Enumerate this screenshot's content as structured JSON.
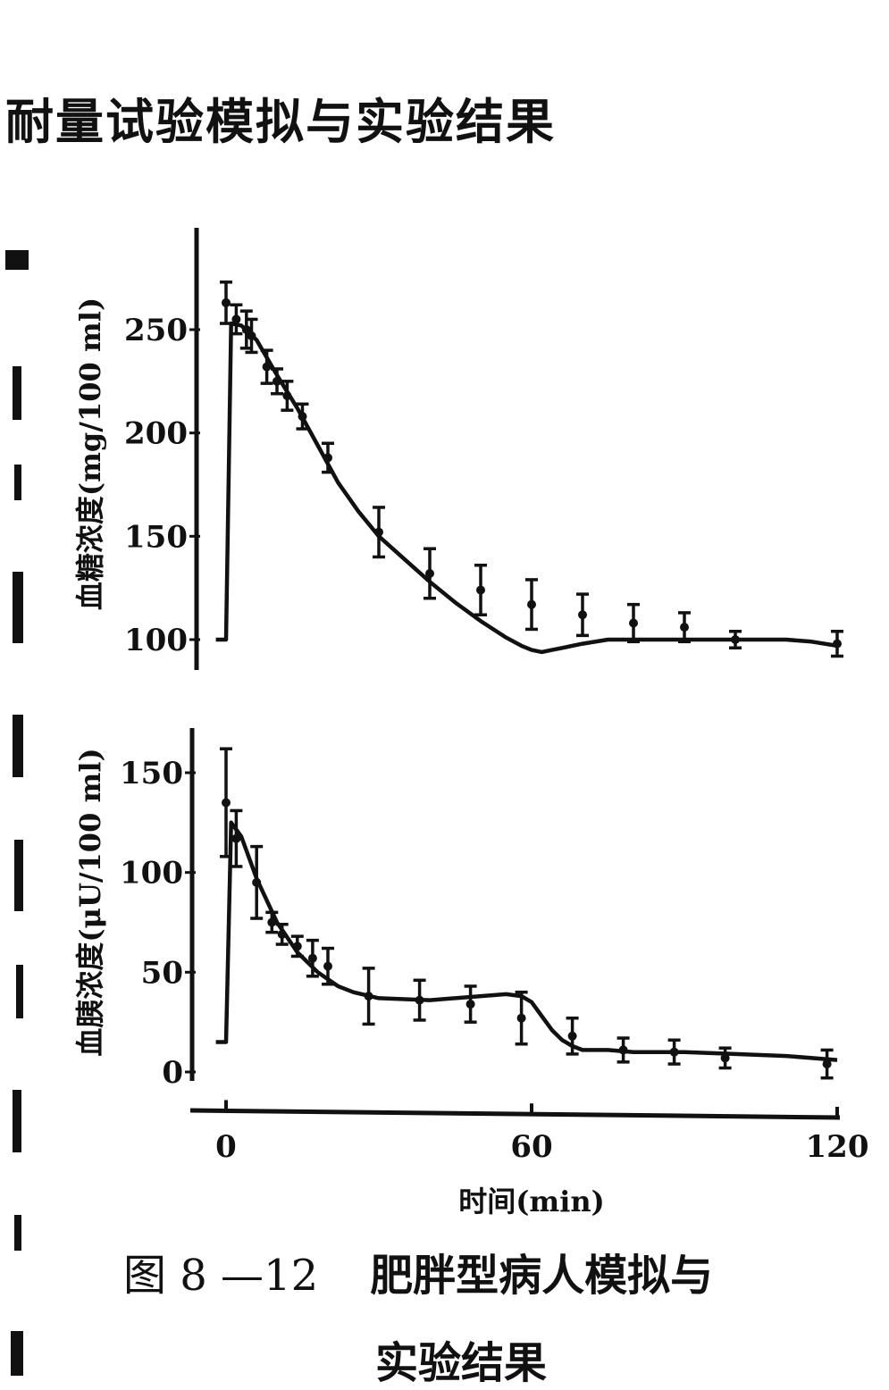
{
  "heading": "耐量试验模拟与实验结果",
  "caption": {
    "number": "图 8 —12",
    "title_line1": "肥胖型病人模拟与",
    "title_line2": "实验结果"
  },
  "chart_data": [
    {
      "type": "line",
      "ylabel": "血糖浓度(mg/100 ml)",
      "xlabel": "时间(min)",
      "xlim": [
        0,
        120
      ],
      "ylim": [
        95,
        280
      ],
      "yticks": [
        100,
        150,
        200,
        250
      ],
      "ytick_labels": [
        "100",
        "150",
        "200",
        "250"
      ],
      "model_curve": {
        "x": [
          -2,
          0,
          1,
          3,
          6,
          10,
          14,
          18,
          22,
          26,
          30,
          35,
          40,
          45,
          50,
          55,
          58,
          60,
          62,
          64,
          66,
          70,
          75,
          80,
          85,
          90,
          95,
          100,
          105,
          110,
          115,
          120
        ],
        "y": [
          100,
          100,
          253,
          252,
          245,
          228,
          212,
          194,
          176,
          162,
          150,
          139,
          128,
          118,
          109,
          101,
          97,
          95,
          94,
          95,
          96,
          98,
          100,
          100,
          100,
          100,
          100,
          100,
          100,
          100,
          99,
          97
        ]
      },
      "measured": [
        {
          "x": 0,
          "y": 263,
          "err": 10
        },
        {
          "x": 2,
          "y": 255,
          "err": 7
        },
        {
          "x": 4,
          "y": 250,
          "err": 9
        },
        {
          "x": 5,
          "y": 247,
          "err": 8
        },
        {
          "x": 8,
          "y": 232,
          "err": 8
        },
        {
          "x": 10,
          "y": 225,
          "err": 6
        },
        {
          "x": 12,
          "y": 218,
          "err": 7
        },
        {
          "x": 15,
          "y": 208,
          "err": 6
        },
        {
          "x": 20,
          "y": 188,
          "err": 7
        },
        {
          "x": 30,
          "y": 152,
          "err": 12
        },
        {
          "x": 40,
          "y": 132,
          "err": 12
        },
        {
          "x": 50,
          "y": 124,
          "err": 12
        },
        {
          "x": 60,
          "y": 117,
          "err": 12
        },
        {
          "x": 70,
          "y": 112,
          "err": 10
        },
        {
          "x": 80,
          "y": 108,
          "err": 9
        },
        {
          "x": 90,
          "y": 106,
          "err": 7
        },
        {
          "x": 100,
          "y": 100,
          "err": 4
        },
        {
          "x": 120,
          "y": 98,
          "err": 6
        }
      ]
    },
    {
      "type": "line",
      "ylabel": "血胰浓度(μU/100 ml)",
      "xlabel": "时间(min)",
      "xlim": [
        0,
        120
      ],
      "ylim": [
        -10,
        170
      ],
      "yticks": [
        0,
        50,
        100,
        150
      ],
      "ytick_labels": [
        "0",
        "50",
        "100",
        "150"
      ],
      "model_curve": {
        "x": [
          -2,
          0,
          1,
          3,
          6,
          10,
          14,
          18,
          22,
          25,
          30,
          40,
          50,
          55,
          58,
          60,
          62,
          64,
          66,
          68,
          70,
          75,
          80,
          90,
          100,
          110,
          120
        ],
        "y": [
          15,
          15,
          125,
          118,
          97,
          75,
          60,
          50,
          43,
          40,
          37,
          36,
          38,
          39,
          38,
          35,
          28,
          21,
          16,
          13,
          11,
          11,
          10,
          10,
          9,
          8,
          6
        ]
      },
      "measured": [
        {
          "x": 0,
          "y": 135,
          "err": 27
        },
        {
          "x": 2,
          "y": 117,
          "err": 14
        },
        {
          "x": 6,
          "y": 95,
          "err": 18
        },
        {
          "x": 9,
          "y": 75,
          "err": 5
        },
        {
          "x": 11,
          "y": 69,
          "err": 5
        },
        {
          "x": 14,
          "y": 63,
          "err": 5
        },
        {
          "x": 17,
          "y": 57,
          "err": 9
        },
        {
          "x": 20,
          "y": 53,
          "err": 9
        },
        {
          "x": 28,
          "y": 38,
          "err": 14
        },
        {
          "x": 38,
          "y": 36,
          "err": 10
        },
        {
          "x": 48,
          "y": 34,
          "err": 9
        },
        {
          "x": 58,
          "y": 27,
          "err": 13
        },
        {
          "x": 68,
          "y": 18,
          "err": 9
        },
        {
          "x": 78,
          "y": 11,
          "err": 6
        },
        {
          "x": 88,
          "y": 10,
          "err": 6
        },
        {
          "x": 98,
          "y": 7,
          "err": 5
        },
        {
          "x": 118,
          "y": 4,
          "err": 7
        }
      ]
    }
  ],
  "x_axis": {
    "ticks": [
      0,
      60,
      120
    ],
    "tick_labels": [
      "0",
      "60",
      "120"
    ],
    "label": "时间(min)"
  }
}
